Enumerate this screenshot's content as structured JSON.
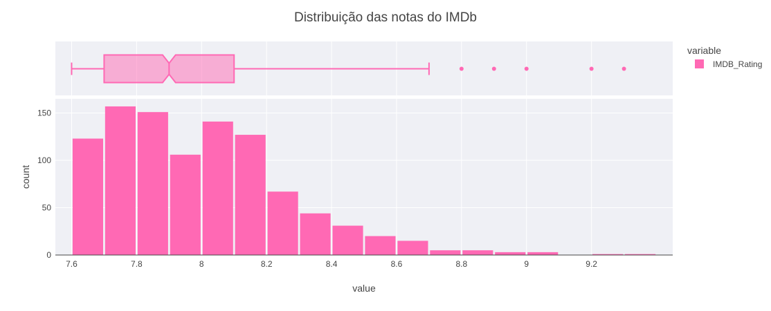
{
  "chart_data": {
    "type": "histogram",
    "title": "Distribuição das notas do IMDb",
    "xlabel": "value",
    "ylabel": "count",
    "legend": {
      "title": "variable",
      "entries": [
        "IMDB_Rating"
      ],
      "position": "top-right"
    },
    "color": "#ff69b4",
    "background": "#eff0f5",
    "grid": true,
    "xlim": [
      7.55,
      9.45
    ],
    "ylim": [
      0,
      165
    ],
    "x_ticks": [
      7.6,
      7.8,
      8,
      8.2,
      8.4,
      8.6,
      8.8,
      9,
      9.2
    ],
    "x_tick_labels": [
      "7.6",
      "7.8",
      "8",
      "8.2",
      "8.4",
      "8.6",
      "8.8",
      "9",
      "9.2"
    ],
    "y_ticks": [
      0,
      50,
      100,
      150
    ],
    "y_tick_labels": [
      "0",
      "50",
      "100",
      "150"
    ],
    "bin_width": 0.1,
    "bins": [
      {
        "x": 7.6,
        "count": 123
      },
      {
        "x": 7.7,
        "count": 157
      },
      {
        "x": 7.8,
        "count": 151
      },
      {
        "x": 7.9,
        "count": 106
      },
      {
        "x": 8.0,
        "count": 141
      },
      {
        "x": 8.1,
        "count": 127
      },
      {
        "x": 8.2,
        "count": 67
      },
      {
        "x": 8.3,
        "count": 44
      },
      {
        "x": 8.4,
        "count": 31
      },
      {
        "x": 8.5,
        "count": 20
      },
      {
        "x": 8.6,
        "count": 15
      },
      {
        "x": 8.7,
        "count": 5
      },
      {
        "x": 8.8,
        "count": 5
      },
      {
        "x": 8.9,
        "count": 3
      },
      {
        "x": 9.0,
        "count": 3
      },
      {
        "x": 9.1,
        "count": 0
      },
      {
        "x": 9.2,
        "count": 1
      },
      {
        "x": 9.3,
        "count": 1
      }
    ],
    "boxplot": {
      "min": 7.6,
      "q1": 7.7,
      "median": 7.9,
      "q3": 8.1,
      "max": 8.7,
      "notch_low": 7.88,
      "notch_high": 7.92,
      "outliers": [
        8.8,
        8.9,
        9.0,
        9.2,
        9.3
      ]
    }
  }
}
